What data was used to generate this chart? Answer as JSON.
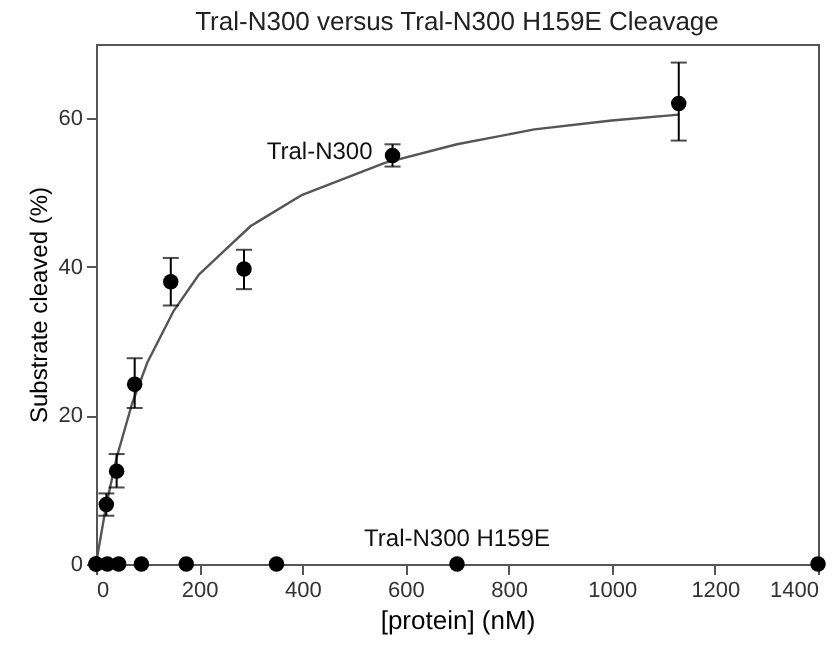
{
  "chart_data": {
    "type": "scatter",
    "title": "Tral-N300 versus Tral-N300 H159E  Cleavage",
    "xlabel": "[protein] (nM)",
    "ylabel": "Substrate cleaved (%)",
    "xlim": [
      0,
      1400
    ],
    "xticks": [
      0,
      200,
      400,
      600,
      800,
      1000,
      1200,
      1400
    ],
    "ylim": [
      0,
      70
    ],
    "yticks": [
      0,
      20,
      40,
      60
    ],
    "grid": false,
    "marker": "circle",
    "series": [
      {
        "type": "line",
        "color": "#555555",
        "line_style": "solid",
        "marker": "none",
        "x": [
          0,
          20,
          40,
          70,
          100,
          150,
          200,
          300,
          400,
          560,
          700,
          850,
          1000,
          1130
        ],
        "values": [
          0,
          8,
          14.3,
          21.6,
          27.2,
          34,
          39,
          45.5,
          49.7,
          54,
          56.5,
          58.5,
          59.7,
          60.5
        ]
      },
      {
        "name": "Tral-N300",
        "color": "#000000",
        "x": [
          0,
          20,
          40,
          75,
          145,
          287,
          575,
          1130
        ],
        "values": [
          0,
          8,
          12.5,
          24.2,
          38,
          39.7,
          55,
          62
        ],
        "errors": [
          null,
          [
            6.5,
            9.5
          ],
          [
            10.3,
            14.8
          ],
          [
            21,
            27.7
          ],
          [
            34.8,
            41.2
          ],
          [
            37,
            42.3
          ],
          [
            53.5,
            56.5
          ],
          [
            57,
            67.5
          ]
        ]
      },
      {
        "name": "Tral-N300 H159E",
        "color": "#000000",
        "x": [
          0,
          22,
          44,
          88,
          175,
          350,
          700,
          1400
        ],
        "values": [
          0,
          0,
          0,
          0,
          0,
          0,
          0,
          0
        ]
      }
    ]
  }
}
